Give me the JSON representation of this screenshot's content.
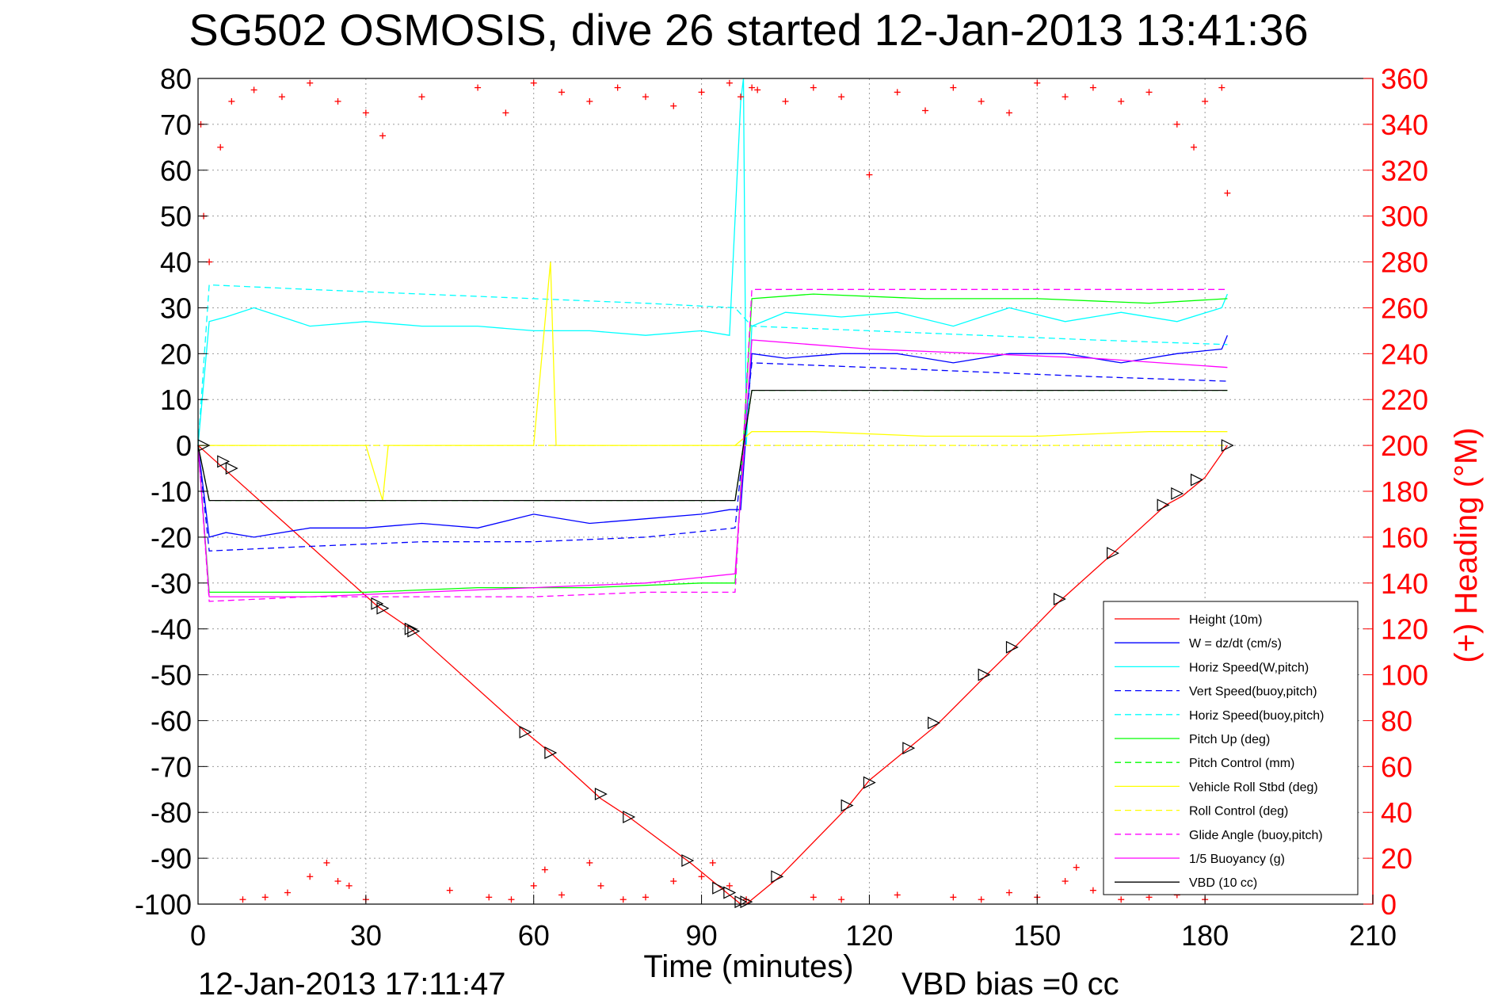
{
  "chart_data": {
    "type": "line",
    "title": "SG502 OSMOSIS, dive 26 started 12-Jan-2013 13:41:36",
    "xlabel": "Time (minutes)",
    "ylabel": "",
    "y2label": "(+) Heading (°M)",
    "xlim": [
      0,
      210
    ],
    "ylim": [
      -100,
      80
    ],
    "y2lim": [
      0,
      360
    ],
    "xticks": [
      "0",
      "30",
      "60",
      "90",
      "120",
      "150",
      "180",
      "210"
    ],
    "yticks": [
      "80",
      "70",
      "60",
      "50",
      "40",
      "30",
      "20",
      "10",
      "0",
      "-10",
      "-20",
      "-30",
      "-40",
      "-50",
      "-60",
      "-70",
      "-80",
      "-90",
      "-100"
    ],
    "y2ticks": [
      "360",
      "340",
      "320",
      "300",
      "280",
      "260",
      "240",
      "220",
      "200",
      "180",
      "160",
      "140",
      "120",
      "100",
      "80",
      "60",
      "40",
      "20",
      "0"
    ],
    "grid": true,
    "legend_position": "bottom-right",
    "footer_left": "12-Jan-2013 17:11:47",
    "footer_right": "VBD bias =0 cc",
    "colors": {
      "height": "#ff0000",
      "w": "#0000ff",
      "horiz_speed": "#00ffff",
      "pitch": "#00ff00",
      "roll": "#ffff00",
      "glide": "#ff00ff",
      "vbd": "#000000",
      "heading": "#ff0000"
    },
    "series": [
      {
        "name": "Height (10m)",
        "color": "#ff0000",
        "dash": false,
        "x": [
          0,
          32,
          38,
          59,
          63,
          72,
          77,
          88,
          97,
          98,
          104,
          116,
          120,
          127,
          132,
          141,
          146,
          154,
          164,
          173,
          176,
          180,
          184
        ],
        "y": [
          0,
          -35,
          -40,
          -63,
          -67,
          -77,
          -81,
          -91,
          -100,
          -100,
          -94,
          -79,
          -73,
          -66,
          -61,
          -50,
          -44,
          -34,
          -23,
          -13,
          -11,
          -7,
          0
        ]
      },
      {
        "name": "W = dz/dt (cm/s)",
        "color": "#0000ff",
        "dash": false,
        "x": [
          0,
          2,
          5,
          10,
          20,
          30,
          40,
          50,
          60,
          70,
          80,
          90,
          95,
          97,
          99,
          105,
          115,
          125,
          135,
          145,
          155,
          165,
          175,
          183,
          184
        ],
        "y": [
          0,
          -20,
          -19,
          -20,
          -18,
          -18,
          -17,
          -18,
          -15,
          -17,
          -16,
          -15,
          -14,
          -14,
          20,
          19,
          20,
          20,
          18,
          20,
          20,
          18,
          20,
          21,
          24
        ]
      },
      {
        "name": "Horiz Speed(W,pitch)",
        "color": "#00ffff",
        "dash": false,
        "x": [
          0,
          2,
          5,
          10,
          20,
          30,
          40,
          50,
          60,
          70,
          80,
          90,
          95,
          97,
          97.5,
          98,
          99,
          105,
          115,
          125,
          135,
          145,
          155,
          165,
          175,
          183,
          184
        ],
        "y": [
          0,
          27,
          28,
          30,
          26,
          27,
          26,
          26,
          25,
          25,
          24,
          25,
          24,
          75,
          80,
          0,
          26,
          29,
          28,
          29,
          26,
          30,
          27,
          29,
          27,
          30,
          33
        ]
      },
      {
        "name": "Vert Speed(buoy,pitch)",
        "color": "#0000ff",
        "dash": true,
        "x": [
          0,
          2,
          20,
          40,
          60,
          80,
          96,
          99,
          120,
          140,
          160,
          184
        ],
        "y": [
          0,
          -23,
          -22,
          -21,
          -21,
          -20,
          -18,
          18,
          17,
          16,
          15,
          14
        ]
      },
      {
        "name": "Horiz Speed(buoy,pitch)",
        "color": "#00ffff",
        "dash": true,
        "x": [
          0,
          2,
          20,
          40,
          60,
          80,
          96,
          99,
          120,
          140,
          160,
          184
        ],
        "y": [
          0,
          35,
          34,
          33,
          32,
          31,
          30,
          26,
          25,
          24,
          23,
          22
        ]
      },
      {
        "name": "Pitch Up (deg)",
        "color": "#00ff00",
        "dash": false,
        "x": [
          0,
          2,
          10,
          30,
          50,
          70,
          90,
          96,
          99,
          110,
          130,
          150,
          170,
          184
        ],
        "y": [
          0,
          -32,
          -32,
          -32,
          -31,
          -31,
          -30,
          -30,
          32,
          33,
          32,
          32,
          31,
          32
        ]
      },
      {
        "name": "Pitch Control (mm)",
        "color": "#00ff00",
        "dash": true,
        "x": [
          0,
          2,
          96,
          99,
          184
        ],
        "y": [
          0,
          -12,
          -12,
          12,
          12
        ]
      },
      {
        "name": "Vehicle Roll Stbd (deg)",
        "color": "#ffff00",
        "dash": false,
        "x": [
          0,
          2,
          10,
          30,
          33,
          34,
          60,
          63,
          64,
          65,
          96,
          99,
          110,
          130,
          150,
          170,
          184
        ],
        "y": [
          0,
          0,
          0,
          0,
          -12,
          0,
          0,
          40,
          0,
          0,
          0,
          3,
          3,
          2,
          2,
          3,
          3
        ]
      },
      {
        "name": "Roll Control (deg)",
        "color": "#ffff00",
        "dash": true,
        "x": [
          0,
          2,
          30,
          60,
          90,
          96,
          99,
          184
        ],
        "y": [
          0,
          0,
          0,
          0,
          0,
          0,
          0,
          0
        ]
      },
      {
        "name": "Glide Angle (buoy,pitch)",
        "color": "#ff00ff",
        "dash": true,
        "x": [
          0,
          2,
          20,
          40,
          60,
          80,
          96,
          99,
          120,
          140,
          160,
          184
        ],
        "y": [
          0,
          -34,
          -33,
          -33,
          -33,
          -32,
          -32,
          34,
          34,
          34,
          34,
          34
        ]
      },
      {
        "name": "1/5 Buoyancy (g)",
        "color": "#ff00ff",
        "dash": false,
        "x": [
          0,
          2,
          20,
          40,
          60,
          80,
          96,
          99,
          120,
          140,
          160,
          184
        ],
        "y": [
          0,
          -33,
          -33,
          -32,
          -31,
          -30,
          -28,
          23,
          21,
          20,
          19,
          17
        ]
      },
      {
        "name": "VBD (10 cc)",
        "color": "#000000",
        "dash": false,
        "x": [
          0,
          2,
          96,
          99,
          184
        ],
        "y": [
          0,
          -12,
          -12,
          12,
          12
        ]
      }
    ],
    "heading": {
      "name": "(+) Heading (°M)",
      "color": "#ff0000",
      "axis": "right",
      "x": [
        0.5,
        1,
        2,
        4,
        6,
        10,
        15,
        20,
        25,
        30,
        33,
        40,
        50,
        55,
        60,
        65,
        70,
        75,
        80,
        85,
        90,
        95,
        97,
        99,
        100,
        105,
        110,
        115,
        120,
        125,
        130,
        135,
        140,
        145,
        150,
        155,
        160,
        165,
        170,
        175,
        178,
        180,
        183,
        184
      ],
      "y": [
        340,
        300,
        280,
        330,
        350,
        355,
        352,
        358,
        350,
        345,
        335,
        352,
        356,
        345,
        358,
        354,
        350,
        356,
        352,
        348,
        354,
        358,
        352,
        356,
        355,
        350,
        356,
        352,
        318,
        354,
        346,
        356,
        350,
        345,
        358,
        352,
        356,
        350,
        354,
        340,
        330,
        350,
        356,
        310
      ]
    },
    "heading_low": {
      "name": "(+) Heading (°M)",
      "color": "#ff0000",
      "axis": "right",
      "x": [
        8,
        12,
        16,
        20,
        23,
        25,
        27,
        30,
        45,
        52,
        56,
        60,
        62,
        65,
        70,
        72,
        76,
        80,
        85,
        90,
        92,
        95,
        98,
        110,
        115,
        125,
        135,
        140,
        145,
        150,
        155,
        157,
        160,
        165,
        170,
        175,
        180
      ],
      "y": [
        2,
        3,
        5,
        12,
        18,
        10,
        8,
        2,
        6,
        3,
        2,
        8,
        15,
        4,
        18,
        8,
        2,
        3,
        10,
        12,
        18,
        8,
        2,
        3,
        2,
        4,
        3,
        2,
        5,
        3,
        10,
        16,
        6,
        2,
        3,
        4,
        2
      ]
    },
    "markers": {
      "name": "dive marker",
      "color": "#000000",
      "x": [
        1,
        4.5,
        6,
        32,
        33,
        38,
        38.5,
        58.5,
        63,
        72,
        77,
        87.5,
        93,
        95,
        97,
        98,
        103.5,
        116,
        120,
        127,
        131.5,
        140.5,
        145.5,
        154,
        163.5,
        172.5,
        175,
        178.5,
        184
      ],
      "y": [
        0,
        -3.5,
        -5,
        -34.5,
        -35.5,
        -40,
        -40.5,
        -62.5,
        -67,
        -76,
        -81,
        -90.5,
        -96.5,
        -97.5,
        -99.5,
        -99.5,
        -94,
        -78.5,
        -73.5,
        -66,
        -60.5,
        -50,
        -44,
        -33.5,
        -23.5,
        -13,
        -10.5,
        -7.5,
        0
      ]
    }
  }
}
